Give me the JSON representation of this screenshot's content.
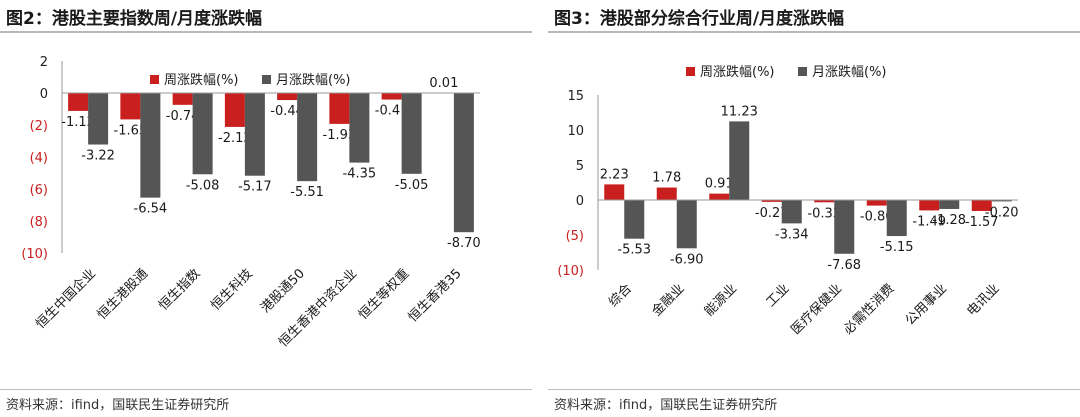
{
  "colors": {
    "weekly": "#c9201f",
    "monthly": "#555555",
    "negative_tick": "#c9201f",
    "axis": "#222222"
  },
  "left": {
    "title": "图2：港股主要指数周/月度涨跌幅",
    "source": "资料来源：ifind，国联民生证券研究所",
    "chart_data": {
      "type": "bar",
      "categories": [
        "恒生中国企业",
        "恒生港股通",
        "恒生指数",
        "恒生科技",
        "港股通50",
        "恒生香港中资企业",
        "恒生等权重",
        "恒生香港35"
      ],
      "series": [
        {
          "name": "周涨跌幅(%)",
          "values": [
            -1.12,
            -1.65,
            -0.74,
            -2.12,
            -0.44,
            -1.93,
            -0.41,
            0.01
          ]
        },
        {
          "name": "月涨跌幅(%)",
          "values": [
            -3.22,
            -6.54,
            -5.08,
            -5.17,
            -5.51,
            -4.35,
            -5.05,
            -8.7
          ]
        }
      ],
      "yticks": [
        "2",
        "0",
        "(2)",
        "(4)",
        "(6)",
        "(8)",
        "(10)"
      ],
      "ylim": [
        -10,
        2
      ],
      "legend": "top-right",
      "grid": false
    }
  },
  "right": {
    "title": "图3：港股部分综合行业周/月度涨跌幅",
    "source": "资料来源：ifind，国联民生证券研究所",
    "chart_data": {
      "type": "bar",
      "categories": [
        "综合",
        "金融业",
        "能源业",
        "工业",
        "医疗保健业",
        "必需性消费",
        "公用事业",
        "电讯业"
      ],
      "series": [
        {
          "name": "周涨跌幅(%)",
          "values": [
            2.23,
            1.78,
            0.91,
            -0.27,
            -0.33,
            -0.8,
            -1.49,
            -1.57
          ]
        },
        {
          "name": "月涨跌幅(%)",
          "values": [
            -5.53,
            -6.9,
            11.23,
            -3.34,
            -7.68,
            -5.15,
            -1.28,
            -0.2
          ]
        }
      ],
      "yticks": [
        "15",
        "10",
        "5",
        "0",
        "(5)",
        "(10)"
      ],
      "ylim": [
        -10,
        15
      ],
      "legend": "top-center",
      "grid": false
    }
  }
}
